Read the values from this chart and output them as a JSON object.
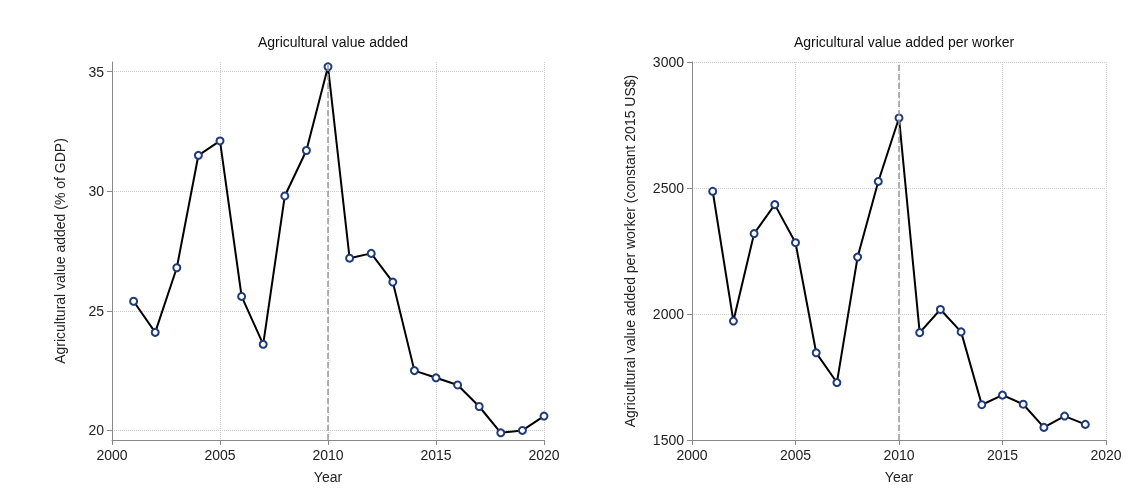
{
  "chart_data": [
    {
      "type": "line",
      "title": "Agricultural value added",
      "xlabel": "Year",
      "ylabel": "Agricultural value added (% of GDP)",
      "x": [
        2001,
        2002,
        2003,
        2004,
        2005,
        2006,
        2007,
        2008,
        2009,
        2010,
        2011,
        2012,
        2013,
        2014,
        2015,
        2016,
        2017,
        2018,
        2019,
        2020
      ],
      "series": [
        {
          "color": "#000000",
          "values": [
            25.4,
            24.1,
            26.8,
            31.5,
            32.1,
            25.6,
            23.6,
            29.8,
            31.7,
            35.2,
            27.2,
            27.4,
            26.2,
            22.5,
            22.2,
            21.9,
            21.0,
            19.9,
            20.0,
            20.6
          ]
        }
      ],
      "xlim": [
        2000,
        2020
      ],
      "xticks": [
        2000,
        2005,
        2010,
        2015,
        2020
      ],
      "ylim": [
        19.6,
        35.4
      ],
      "yticks": [
        20,
        25,
        30,
        35
      ],
      "ref_lines": [
        {
          "axis": "x",
          "value": 2010,
          "color": "#999999",
          "line_style": "dashed"
        }
      ],
      "grid": true,
      "marker": "circle",
      "line_style": "solid"
    },
    {
      "type": "line",
      "title": "Agricultural value added per worker",
      "xlabel": "Year",
      "ylabel": "Agricultural value added per worker (constant 2015 US$)",
      "x": [
        2001,
        2002,
        2003,
        2004,
        2005,
        2006,
        2007,
        2008,
        2009,
        2010,
        2011,
        2012,
        2013,
        2014,
        2015,
        2016,
        2017,
        2018,
        2019
      ],
      "series": [
        {
          "color": "#000000",
          "values": [
            2487,
            1972,
            2319,
            2434,
            2283,
            1846,
            1728,
            2226,
            2526,
            2778,
            1926,
            2018,
            1929,
            1640,
            1678,
            1642,
            1550,
            1595,
            1562
          ]
        }
      ],
      "xlim": [
        2000,
        2020
      ],
      "xticks": [
        2000,
        2005,
        2010,
        2015,
        2020
      ],
      "ylim": [
        1500,
        3000
      ],
      "yticks": [
        1500,
        2000,
        2500,
        3000
      ],
      "ref_lines": [
        {
          "axis": "x",
          "value": 2010,
          "color": "#999999",
          "line_style": "dashed"
        }
      ],
      "grid": true,
      "marker": "circle",
      "line_style": "solid"
    }
  ]
}
